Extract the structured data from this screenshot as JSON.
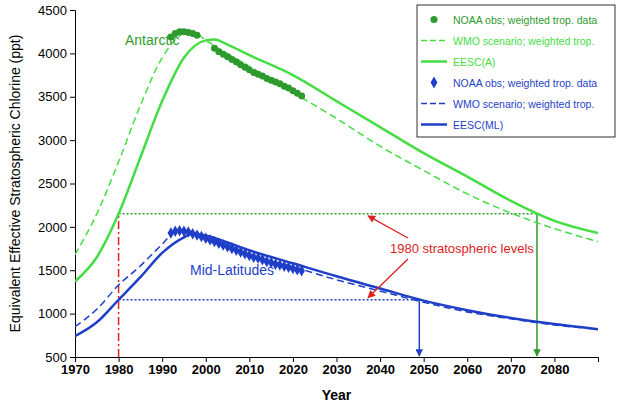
{
  "chart_data": {
    "type": "line",
    "xlabel": "Year",
    "ylabel": "Equivalent Effective Stratospheric Chlorine (ppt)",
    "xlim": [
      1970,
      2090
    ],
    "xticks": [
      1970,
      1980,
      1990,
      2000,
      2010,
      2020,
      2030,
      2040,
      2050,
      2060,
      2070,
      2080
    ],
    "ylim": [
      500,
      4500
    ],
    "yticks": [
      500,
      1000,
      1500,
      2000,
      2500,
      3000,
      3500,
      4000,
      4500
    ],
    "legend": "top-right",
    "series": [
      {
        "name": "NOAA obs; weighted trop. data",
        "color": "#2e9a2e",
        "type": "scatter",
        "marker": "circle",
        "x": [
          1992,
          1993,
          1994,
          1995,
          1996,
          1997,
          1998,
          2002,
          2003,
          2004,
          2005,
          2006,
          2007,
          2008,
          2009,
          2010,
          2011,
          2012,
          2013,
          2014,
          2015,
          2016,
          2017,
          2018,
          2019,
          2020,
          2021,
          2022
        ],
        "values": [
          4190,
          4230,
          4250,
          4250,
          4240,
          4230,
          4210,
          4060,
          4020,
          3990,
          3960,
          3930,
          3900,
          3870,
          3840,
          3810,
          3780,
          3760,
          3740,
          3710,
          3690,
          3670,
          3650,
          3620,
          3600,
          3570,
          3540,
          3510
        ]
      },
      {
        "name": "WMO scenario; weighted trop.",
        "color": "#44dd44",
        "type": "line",
        "line_style": "dashed",
        "x": [
          1970,
          1975,
          1980,
          1985,
          1990,
          1995,
          1997,
          2000,
          2010,
          2020,
          2030,
          2040,
          2050,
          2060,
          2070,
          2080,
          2090
        ],
        "values": [
          1680,
          2150,
          2750,
          3400,
          3950,
          4230,
          4250,
          4150,
          3850,
          3550,
          3250,
          2930,
          2650,
          2380,
          2160,
          1980,
          1830
        ]
      },
      {
        "name": "EESC(A)",
        "color": "#44dd44",
        "type": "line",
        "line_style": "solid",
        "x": [
          1970,
          1975,
          1980,
          1985,
          1990,
          1995,
          2000,
          2002,
          2005,
          2010,
          2020,
          2030,
          2040,
          2050,
          2060,
          2070,
          2080,
          2090
        ],
        "values": [
          1370,
          1650,
          2150,
          2800,
          3450,
          3950,
          4150,
          4160,
          4100,
          3980,
          3750,
          3450,
          3150,
          2850,
          2580,
          2300,
          2070,
          1930
        ]
      },
      {
        "name": "NOAA obs; weighted trop. data",
        "color": "#1f3fc8",
        "type": "scatter",
        "marker": "diamond",
        "x": [
          1992,
          1993,
          1994,
          1995,
          1996,
          1997,
          1998,
          1999,
          2000,
          2001,
          2002,
          2003,
          2004,
          2005,
          2006,
          2007,
          2008,
          2009,
          2010,
          2011,
          2012,
          2013,
          2014,
          2015,
          2016,
          2017,
          2018,
          2019,
          2020,
          2021,
          2022
        ],
        "values": [
          1930,
          1950,
          1955,
          1950,
          1940,
          1920,
          1905,
          1890,
          1870,
          1850,
          1830,
          1810,
          1790,
          1770,
          1750,
          1730,
          1710,
          1690,
          1670,
          1650,
          1640,
          1620,
          1600,
          1590,
          1570,
          1560,
          1545,
          1535,
          1520,
          1505,
          1495
        ]
      },
      {
        "name": "WMO scenario; weighted trop.",
        "color": "#1f3fc8",
        "type": "line",
        "line_style": "dashed",
        "x": [
          1970,
          1975,
          1980,
          1985,
          1990,
          1993,
          1995,
          2000,
          2005,
          2010,
          2020,
          2030,
          2040,
          2050,
          2060,
          2070,
          2080,
          2090
        ],
        "values": [
          850,
          1050,
          1330,
          1550,
          1800,
          1940,
          1950,
          1880,
          1780,
          1680,
          1540,
          1390,
          1260,
          1130,
          1020,
          940,
          870,
          820
        ]
      },
      {
        "name": "EESC(ML)",
        "color": "#1f3fc8",
        "type": "line",
        "line_style": "solid",
        "x": [
          1970,
          1975,
          1980,
          1985,
          1990,
          1995,
          1997,
          2000,
          2005,
          2010,
          2020,
          2030,
          2040,
          2050,
          2060,
          2070,
          2080,
          2090
        ],
        "values": [
          740,
          900,
          1160,
          1420,
          1700,
          1880,
          1920,
          1900,
          1820,
          1730,
          1580,
          1430,
          1290,
          1150,
          1040,
          950,
          880,
          820
        ]
      }
    ],
    "region_labels": [
      {
        "text": "Antarctic",
        "color": "#2e9a2e"
      },
      {
        "text": "Mid-Latitudes",
        "color": "#1f3fc8"
      }
    ],
    "reference": {
      "label": "1980 stratospheric levels",
      "color": "#dd2222",
      "year": 1980,
      "levels": [
        {
          "value": 2150,
          "color": "#2e9a2e",
          "return_year": 2076
        },
        {
          "value": 1160,
          "color": "#1f3fc8",
          "return_year": 2049
        }
      ]
    }
  }
}
